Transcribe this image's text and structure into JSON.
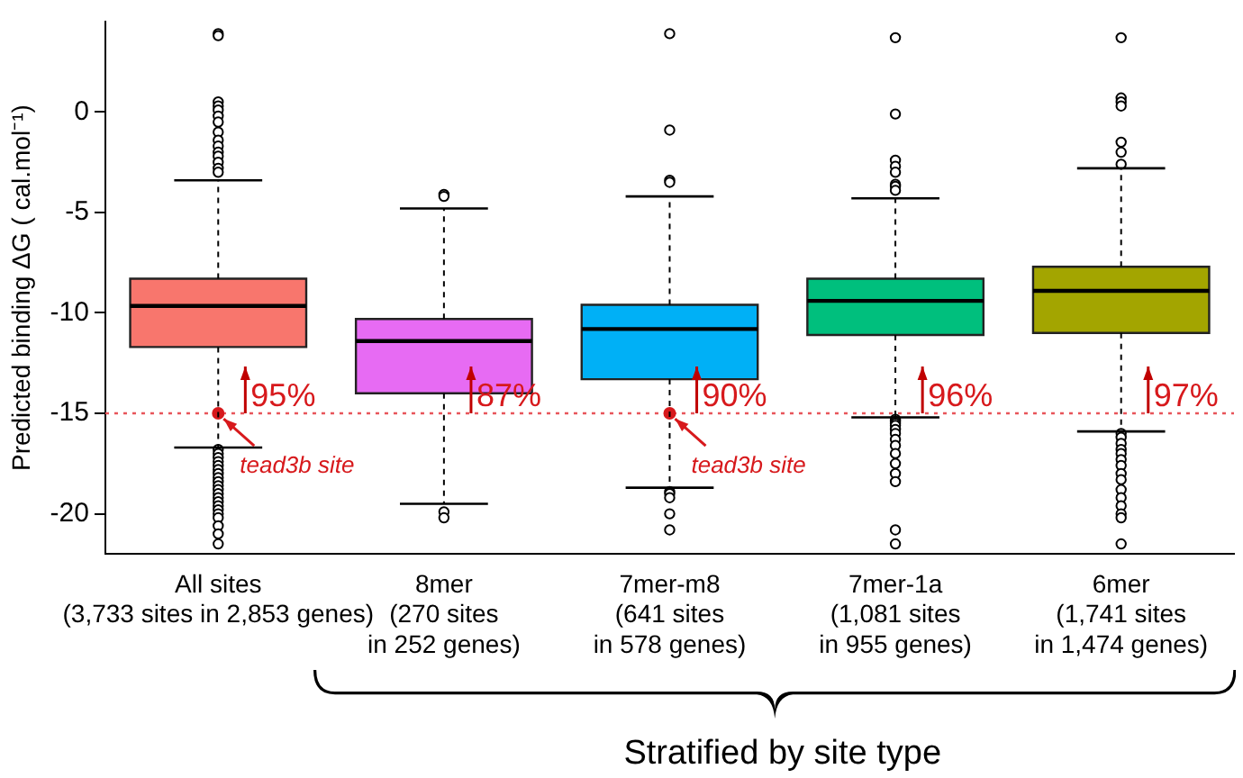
{
  "chart_data": {
    "type": "box",
    "ylabel": "Predicted binding ΔG ( cal.mol⁻¹)",
    "categories": [
      "All sites\n(3,733 sites in 2,853 genes)",
      "8mer\n(270 sites\nin 252 genes)",
      "7mer-m8\n(641 sites\nin 578 genes)",
      "7mer-1a\n(1,081 sites\nin 955 genes)",
      "6mer\n(1,741 sites\nin 1,474 genes)"
    ],
    "colors": [
      "#f8766d",
      "#e76bf3",
      "#00b0f6",
      "#00bf7d",
      "#a3a500"
    ],
    "boxes": [
      {
        "low": -16.7,
        "q1": -11.7,
        "median": -9.65,
        "q3": -8.3,
        "high": -3.4,
        "outliers": [
          3.9,
          3.8,
          0.5,
          0.3,
          0.1,
          -0.2,
          -0.5,
          -1,
          -1.4,
          -1.7,
          -2,
          -2.2,
          -2.5,
          -2.8,
          -3,
          -16.8,
          -17,
          -17.2,
          -17.4,
          -17.6,
          -17.8,
          -18,
          -18.2,
          -18.4,
          -18.6,
          -18.8,
          -19,
          -19.2,
          -19.4,
          -19.6,
          -19.8,
          -20,
          -20.2,
          -20.6,
          -21,
          -21.5
        ]
      },
      {
        "low": -19.5,
        "q1": -14.0,
        "median": -11.4,
        "q3": -10.3,
        "high": -4.8,
        "outliers": [
          -4.1,
          -4.2,
          -19.9,
          -20.2
        ]
      },
      {
        "low": -18.7,
        "q1": -13.3,
        "median": -10.8,
        "q3": -9.6,
        "high": -4.2,
        "outliers": [
          3.9,
          -0.9,
          -3.4,
          -3.5,
          -18.9,
          -19.0,
          -19.2,
          -20.0,
          -20.8
        ]
      },
      {
        "low": -15.2,
        "q1": -11.1,
        "median": -9.4,
        "q3": -8.3,
        "high": -4.3,
        "outliers": [
          3.7,
          -0.1,
          -2.4,
          -2.7,
          -3.0,
          -3.6,
          -3.7,
          -3.9,
          -15.3,
          -15.4,
          -15.5,
          -15.6,
          -15.8,
          -16,
          -16.3,
          -16.6,
          -17,
          -17.5,
          -18,
          -18.4,
          -20.8,
          -21.5
        ]
      },
      {
        "low": -15.9,
        "q1": -11.0,
        "median": -8.9,
        "q3": -7.7,
        "high": -2.8,
        "outliers": [
          3.7,
          0.7,
          0.5,
          0.3,
          -1.5,
          -2,
          -2.6,
          -16,
          -16.2,
          -16.5,
          -16.8,
          -17,
          -17.3,
          -17.6,
          -18,
          -18.3,
          -18.8,
          -19.2,
          -19.6,
          -20,
          -20.2,
          -21.5
        ]
      }
    ],
    "series": [
      {
        "type": "scatter",
        "name": "tead3b site",
        "color": "#d7191c",
        "x": [
          "All sites\n(3,733 sites in 2,853 genes)",
          "7mer-m8\n(641 sites\nin 578 genes)"
        ],
        "values": [
          -15,
          -15
        ]
      }
    ],
    "ylim": [
      -22,
      4.5
    ],
    "yticks": [
      0,
      -5,
      -10,
      -15,
      -20
    ],
    "grid": false,
    "ref_lines": [
      {
        "axis": "y",
        "value": -15,
        "color": "#e8545a",
        "line_style": "dotted"
      }
    ],
    "annotations": [
      {
        "text": "95%",
        "x": "All sites\n(3,733 sites in 2,853 genes)",
        "y": -15
      },
      {
        "text": "87%",
        "x": "8mer\n(270 sites\nin 252 genes)",
        "y": -15
      },
      {
        "text": "90%",
        "x": "7mer-m8\n(641 sites\nin 578 genes)",
        "y": -15
      },
      {
        "text": "96%",
        "x": "7mer-1a\n(1,081 sites\nin 955 genes)",
        "y": -15
      },
      {
        "text": "97%",
        "x": "6mer\n(1,741 sites\nin 1,474 genes)",
        "y": -15
      },
      "Stratified by site type"
    ]
  }
}
